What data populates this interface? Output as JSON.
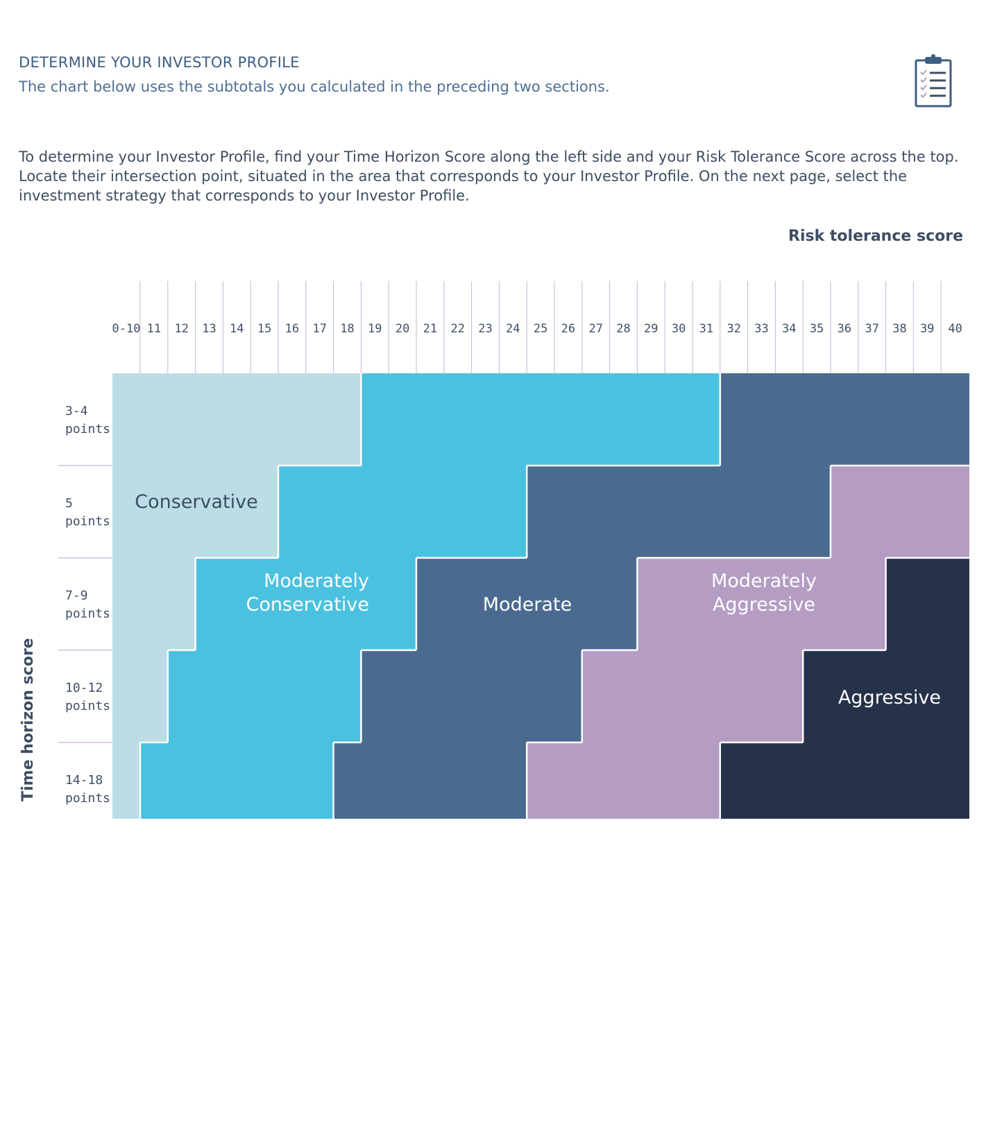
{
  "header": {
    "title": "DETERMINE YOUR INVESTOR PROFILE",
    "subtitle": "The chart below uses the subtotals you calculated in the preceding two sections.",
    "icon": "clipboard-checklist-icon"
  },
  "intro": "To determine your Investor Profile, find your Time Horizon Score along the left side and your Risk Tolerance Score across the top. Locate their intersection point, situated in the area that corresponds to your Investor Profile. On the next page, select the investment strategy that corresponds to your Investor Profile.",
  "chart_data": {
    "type": "heatmap",
    "xlabel": "Risk tolerance score",
    "ylabel": "Time horizon score",
    "x_categories": [
      "0-10",
      "11",
      "12",
      "13",
      "14",
      "15",
      "16",
      "17",
      "18",
      "19",
      "20",
      "21",
      "22",
      "23",
      "24",
      "25",
      "26",
      "27",
      "28",
      "29",
      "30",
      "31",
      "32",
      "33",
      "34",
      "35",
      "36",
      "37",
      "38",
      "39",
      "40"
    ],
    "y_categories": [
      "3-4 points",
      "5 points",
      "7-9 points",
      "10-12 points",
      "14-18 points"
    ],
    "profiles": [
      {
        "name": "Conservative",
        "color": "#bcdde6",
        "text_color": "#3d4d62"
      },
      {
        "name": "Moderately Conservative",
        "color": "#4bc1e0",
        "text_color": "#ffffff"
      },
      {
        "name": "Moderate",
        "color": "#4a6b8f",
        "text_color": "#ffffff"
      },
      {
        "name": "Moderately Aggressive",
        "color": "#b49cc3",
        "text_color": "#ffffff"
      },
      {
        "name": "Aggressive",
        "color": "#263249",
        "text_color": "#ffffff"
      }
    ],
    "rows": [
      {
        "time_horizon": "3-4 points",
        "segments": [
          {
            "profile": "Conservative",
            "from": "0-10",
            "to": "18"
          },
          {
            "profile": "Moderately Conservative",
            "from": "19",
            "to": "31"
          },
          {
            "profile": "Moderate",
            "from": "32",
            "to": "40"
          }
        ]
      },
      {
        "time_horizon": "5 points",
        "segments": [
          {
            "profile": "Conservative",
            "from": "0-10",
            "to": "15"
          },
          {
            "profile": "Moderately Conservative",
            "from": "16",
            "to": "24"
          },
          {
            "profile": "Moderate",
            "from": "25",
            "to": "35"
          },
          {
            "profile": "Moderately Aggressive",
            "from": "36",
            "to": "40"
          }
        ]
      },
      {
        "time_horizon": "7-9 points",
        "segments": [
          {
            "profile": "Conservative",
            "from": "0-10",
            "to": "12"
          },
          {
            "profile": "Moderately Conservative",
            "from": "13",
            "to": "20"
          },
          {
            "profile": "Moderate",
            "from": "21",
            "to": "28"
          },
          {
            "profile": "Moderately Aggressive",
            "from": "29",
            "to": "37"
          },
          {
            "profile": "Aggressive",
            "from": "38",
            "to": "40"
          }
        ]
      },
      {
        "time_horizon": "10-12 points",
        "segments": [
          {
            "profile": "Conservative",
            "from": "0-10",
            "to": "11"
          },
          {
            "profile": "Moderately Conservative",
            "from": "12",
            "to": "18"
          },
          {
            "profile": "Moderate",
            "from": "19",
            "to": "26"
          },
          {
            "profile": "Moderately Aggressive",
            "from": "27",
            "to": "34"
          },
          {
            "profile": "Aggressive",
            "from": "35",
            "to": "40"
          }
        ]
      },
      {
        "time_horizon": "14-18 points",
        "segments": [
          {
            "profile": "Conservative",
            "from": "0-10",
            "to": "0-10"
          },
          {
            "profile": "Moderately Conservative",
            "from": "11",
            "to": "17"
          },
          {
            "profile": "Moderate",
            "from": "18",
            "to": "24"
          },
          {
            "profile": "Moderately Aggressive",
            "from": "25",
            "to": "31"
          },
          {
            "profile": "Aggressive",
            "from": "32",
            "to": "40"
          }
        ]
      }
    ],
    "zone_labels": [
      {
        "text": [
          "Conservative"
        ],
        "profile": "Conservative"
      },
      {
        "text": [
          "Moderately",
          "Conservative"
        ],
        "profile": "Moderately Conservative"
      },
      {
        "text": [
          "Moderate"
        ],
        "profile": "Moderate"
      },
      {
        "text": [
          "Moderately",
          "Aggressive"
        ],
        "profile": "Moderately Aggressive"
      },
      {
        "text": [
          "Aggressive"
        ],
        "profile": "Aggressive"
      }
    ],
    "colors": {
      "tick_line": "#c9b3d6",
      "text": "#3d4d62"
    }
  }
}
